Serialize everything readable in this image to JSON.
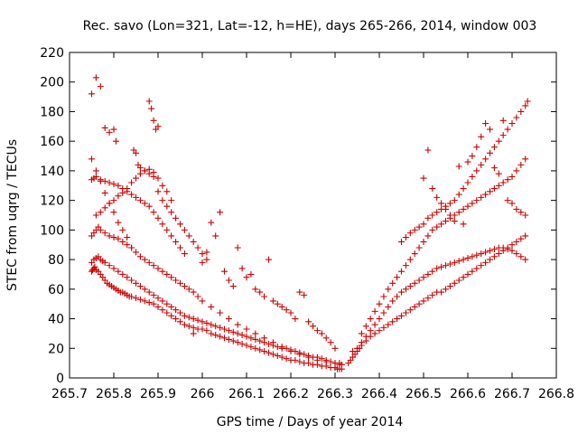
{
  "chart_data": {
    "type": "scatter",
    "title": "Rec. savo (Lon=321, Lat=-12, h=HE), days 265-266, 2014, window 003",
    "xlabel": "GPS time / Days of year 2014",
    "ylabel": "STEC from uqrg / TECUs",
    "xlim": [
      265.7,
      266.8
    ],
    "ylim": [
      0,
      220
    ],
    "x_ticks": [
      "265.7",
      "265.8",
      "265.9",
      "266",
      "266.1",
      "266.2",
      "266.3",
      "266.4",
      "266.5",
      "266.6",
      "266.7",
      "266.8"
    ],
    "y_ticks": [
      "0",
      "20",
      "40",
      "60",
      "80",
      "100",
      "120",
      "140",
      "160",
      "180",
      "200",
      "220"
    ],
    "grid": false,
    "marker": "plus",
    "color": "#cc0000",
    "series": [
      {
        "x": [
          265.75,
          265.752,
          265.755,
          265.757,
          265.76,
          265.765,
          265.77,
          265.775,
          265.78,
          265.785,
          265.79,
          265.795,
          265.8,
          265.805,
          265.81,
          265.815,
          265.82,
          265.825,
          265.83,
          265.835,
          265.84,
          265.85,
          265.86,
          265.87,
          265.88,
          265.89,
          265.9,
          265.91,
          265.92,
          265.93,
          265.94,
          265.95,
          265.96,
          265.97,
          265.98,
          265.99,
          266.0,
          266.01,
          266.02,
          266.03,
          266.04,
          266.05,
          266.06,
          266.07,
          266.08,
          266.09,
          266.1,
          266.11,
          266.12,
          266.13,
          266.14,
          266.15,
          266.16,
          266.17,
          266.18,
          266.19,
          266.2,
          266.21,
          266.22,
          266.23,
          266.24,
          266.25,
          266.26,
          266.27,
          266.28,
          266.29,
          266.3,
          266.305,
          266.31,
          266.315
        ],
        "y": [
          72,
          73,
          74,
          75,
          73,
          72,
          70,
          68,
          66,
          64,
          63,
          62,
          61,
          60,
          59,
          58,
          58,
          57,
          56,
          55,
          55,
          54,
          53,
          52,
          51,
          50,
          48,
          46,
          44,
          42,
          40,
          38,
          36,
          35,
          34,
          33,
          33,
          32,
          30,
          29,
          28,
          27,
          26,
          25,
          24,
          23,
          22,
          21,
          20,
          19,
          18,
          17,
          16,
          15,
          14,
          13,
          12,
          12,
          11,
          10,
          10,
          9,
          9,
          8,
          8,
          7,
          7,
          6,
          6,
          6
        ]
      },
      {
        "x": [
          265.75,
          265.755,
          265.76,
          265.765,
          265.77,
          265.775,
          265.78,
          265.79,
          265.8,
          265.81,
          265.82,
          265.83,
          265.84,
          265.85,
          265.86,
          265.87,
          265.88,
          265.89,
          265.9,
          265.91,
          265.92,
          265.93,
          265.94,
          265.95,
          265.96,
          265.97,
          265.98,
          265.99,
          266.0,
          266.01,
          266.02,
          266.03,
          266.04,
          266.05,
          266.06,
          266.07,
          266.08,
          266.09,
          266.1,
          266.11,
          266.12,
          266.13,
          266.14,
          266.15,
          266.16,
          266.17,
          266.18,
          266.19,
          266.2,
          266.21,
          266.22,
          266.23,
          266.24,
          266.25,
          266.26,
          266.27,
          266.28,
          266.29,
          266.3,
          266.31,
          266.315
        ],
        "y": [
          78,
          80,
          81,
          82,
          80,
          79,
          78,
          76,
          74,
          72,
          70,
          68,
          66,
          64,
          62,
          60,
          58,
          56,
          54,
          52,
          50,
          48,
          46,
          44,
          42,
          41,
          40,
          39,
          38,
          37,
          36,
          35,
          34,
          33,
          32,
          31,
          30,
          29,
          28,
          27,
          26,
          25,
          24,
          23,
          22,
          21,
          20,
          20,
          19,
          18,
          17,
          16,
          15,
          14,
          14,
          13,
          12,
          11,
          10,
          10,
          9
        ]
      },
      {
        "x": [
          265.75,
          265.755,
          265.76,
          265.765,
          265.77,
          265.78,
          265.79,
          265.8,
          265.81,
          265.82,
          265.83,
          265.84,
          265.85,
          265.86,
          265.87,
          265.88,
          265.89,
          265.9,
          265.91,
          265.92,
          265.93,
          265.94,
          265.95,
          265.96,
          265.97,
          265.98,
          265.99,
          266.0,
          266.02,
          266.04,
          266.06,
          266.08,
          266.1,
          266.12,
          266.14,
          266.16,
          266.18,
          266.2,
          266.22,
          266.24,
          266.26,
          266.28,
          266.3,
          266.31
        ],
        "y": [
          96,
          98,
          100,
          102,
          100,
          98,
          96,
          95,
          94,
          92,
          90,
          88,
          85,
          82,
          80,
          78,
          76,
          74,
          72,
          70,
          68,
          66,
          64,
          62,
          60,
          58,
          55,
          52,
          48,
          44,
          40,
          36,
          33,
          30,
          27,
          24,
          21,
          18,
          16,
          14,
          12,
          11,
          10,
          9
        ]
      },
      {
        "x": [
          265.75,
          265.755,
          265.76,
          265.77,
          265.78,
          265.79,
          265.8,
          265.81,
          265.82,
          265.83,
          265.84,
          265.85,
          265.86,
          265.87,
          265.88,
          265.89,
          265.9,
          265.91,
          265.92,
          265.93,
          265.94,
          265.95,
          265.96
        ],
        "y": [
          134,
          135,
          136,
          134,
          133,
          132,
          131,
          130,
          128,
          126,
          124,
          122,
          120,
          118,
          116,
          112,
          108,
          104,
          100,
          96,
          92,
          88,
          84
        ]
      },
      {
        "x": [
          265.76,
          265.77,
          265.78,
          265.79,
          265.8,
          265.81,
          265.82,
          265.83,
          265.84,
          265.85,
          265.86,
          265.87,
          265.88,
          265.89,
          265.9,
          265.91,
          265.92,
          265.93
        ],
        "y": [
          110,
          112,
          115,
          118,
          120,
          123,
          125,
          128,
          132,
          135,
          138,
          140,
          141,
          139,
          135,
          130,
          126,
          120
        ]
      },
      {
        "x": [
          265.75,
          265.76,
          265.77,
          265.78,
          265.79,
          265.8,
          265.81,
          265.82,
          265.83,
          265.84,
          265.845,
          265.85,
          265.855,
          265.86,
          265.87,
          265.88,
          265.89,
          265.9,
          265.91,
          265.92,
          265.93,
          265.94,
          265.95,
          265.96,
          265.97,
          265.98,
          265.99,
          266.0,
          266.01
        ],
        "y": [
          148,
          140,
          133,
          125,
          118,
          112,
          105,
          100,
          95,
          88,
          154,
          152,
          144,
          142,
          140,
          138,
          136,
          126,
          120,
          116,
          112,
          108,
          104,
          100,
          96,
          92,
          88,
          84,
          80
        ]
      },
      {
        "x": [
          265.75,
          265.76,
          265.77,
          265.78,
          265.79,
          265.8,
          265.805,
          265.88,
          265.885,
          265.89,
          265.895,
          265.9
        ],
        "y": [
          192,
          203,
          197,
          169,
          166,
          168,
          160,
          187,
          182,
          174,
          168,
          170
        ]
      },
      {
        "x": [
          265.98,
          266.0,
          266.01,
          266.02,
          266.03,
          266.04,
          266.05,
          266.06,
          266.07,
          266.08,
          266.09,
          266.1,
          266.11,
          266.12,
          266.13,
          266.14,
          266.15,
          266.16,
          266.17,
          266.18,
          266.19,
          266.2,
          266.21,
          266.22,
          266.23,
          266.24,
          266.25,
          266.26,
          266.27,
          266.28,
          266.29,
          266.3
        ],
        "y": [
          30,
          78,
          85,
          105,
          96,
          112,
          72,
          66,
          62,
          88,
          74,
          68,
          70,
          60,
          58,
          55,
          80,
          52,
          50,
          48,
          46,
          44,
          40,
          58,
          56,
          38,
          35,
          32,
          30,
          27,
          24,
          20
        ]
      },
      {
        "x": [
          266.33,
          266.335,
          266.34,
          266.345,
          266.35,
          266.355,
          266.36,
          266.37,
          266.38,
          266.39,
          266.4,
          266.41,
          266.42,
          266.43,
          266.44,
          266.45,
          266.46,
          266.47,
          266.48,
          266.49,
          266.5,
          266.51,
          266.52,
          266.53,
          266.54,
          266.55,
          266.56,
          266.57,
          266.58,
          266.59,
          266.6,
          266.61,
          266.62,
          266.63,
          266.64,
          266.65,
          266.66,
          266.67,
          266.68,
          266.69,
          266.7,
          266.71,
          266.72,
          266.73
        ],
        "y": [
          10,
          12,
          14,
          16,
          18,
          20,
          22,
          25,
          28,
          30,
          32,
          34,
          36,
          38,
          40,
          42,
          44,
          46,
          48,
          50,
          52,
          54,
          56,
          58,
          58,
          60,
          62,
          64,
          66,
          68,
          70,
          72,
          74,
          76,
          78,
          80,
          82,
          84,
          86,
          88,
          90,
          92,
          94,
          96
        ]
      },
      {
        "x": [
          266.34,
          266.35,
          266.36,
          266.37,
          266.38,
          266.39,
          266.4,
          266.41,
          266.42,
          266.43,
          266.44,
          266.45,
          266.46,
          266.47,
          266.48,
          266.49,
          266.5,
          266.51,
          266.52,
          266.53,
          266.54,
          266.55,
          266.56,
          266.57,
          266.58,
          266.59,
          266.6,
          266.61,
          266.62,
          266.63,
          266.64,
          266.65,
          266.66,
          266.67,
          266.68,
          266.69,
          266.7,
          266.71,
          266.72,
          266.73
        ],
        "y": [
          18,
          20,
          24,
          28,
          32,
          36,
          40,
          44,
          48,
          52,
          55,
          58,
          60,
          62,
          64,
          66,
          68,
          70,
          72,
          74,
          75,
          76,
          77,
          78,
          79,
          80,
          81,
          82,
          83,
          84,
          85,
          86,
          87,
          88,
          88,
          87,
          86,
          84,
          82,
          80
        ]
      },
      {
        "x": [
          266.36,
          266.37,
          266.38,
          266.39,
          266.4,
          266.41,
          266.42,
          266.43,
          266.44,
          266.45,
          266.46,
          266.47,
          266.48,
          266.49,
          266.5,
          266.51,
          266.52,
          266.53,
          266.54,
          266.55,
          266.56,
          266.57,
          266.58,
          266.59,
          266.6,
          266.61,
          266.62,
          266.63,
          266.64,
          266.65,
          266.66,
          266.67,
          266.68,
          266.69,
          266.7,
          266.71,
          266.72,
          266.73
        ],
        "y": [
          30,
          35,
          40,
          45,
          50,
          55,
          60,
          64,
          68,
          72,
          76,
          80,
          84,
          88,
          92,
          96,
          100,
          102,
          104,
          106,
          108,
          110,
          112,
          114,
          116,
          118,
          120,
          122,
          124,
          126,
          128,
          130,
          132,
          134,
          136,
          140,
          144,
          148
        ]
      },
      {
        "x": [
          266.45,
          266.46,
          266.47,
          266.48,
          266.49,
          266.5,
          266.51,
          266.52,
          266.53,
          266.54,
          266.55,
          266.56,
          266.57,
          266.58,
          266.59,
          266.6,
          266.61,
          266.62,
          266.63,
          266.64,
          266.65,
          266.66,
          266.67,
          266.68,
          266.69,
          266.7,
          266.71,
          266.72,
          266.73,
          266.735
        ],
        "y": [
          92,
          95,
          98,
          100,
          102,
          104,
          108,
          110,
          112,
          114,
          116,
          118,
          120,
          124,
          128,
          132,
          136,
          140,
          144,
          148,
          152,
          156,
          160,
          164,
          168,
          172,
          176,
          180,
          184,
          187
        ]
      },
      {
        "x": [
          266.5,
          266.51,
          266.52,
          266.53,
          266.54,
          266.55,
          266.56,
          266.57,
          266.58,
          266.59,
          266.6,
          266.61,
          266.62,
          266.63,
          266.64,
          266.65,
          266.66,
          266.67,
          266.68,
          266.69,
          266.7,
          266.71,
          266.72,
          266.73
        ],
        "y": [
          135,
          154,
          128,
          122,
          118,
          114,
          110,
          106,
          143,
          104,
          146,
          150,
          156,
          163,
          172,
          168,
          142,
          138,
          174,
          120,
          118,
          114,
          112,
          110
        ]
      }
    ]
  }
}
